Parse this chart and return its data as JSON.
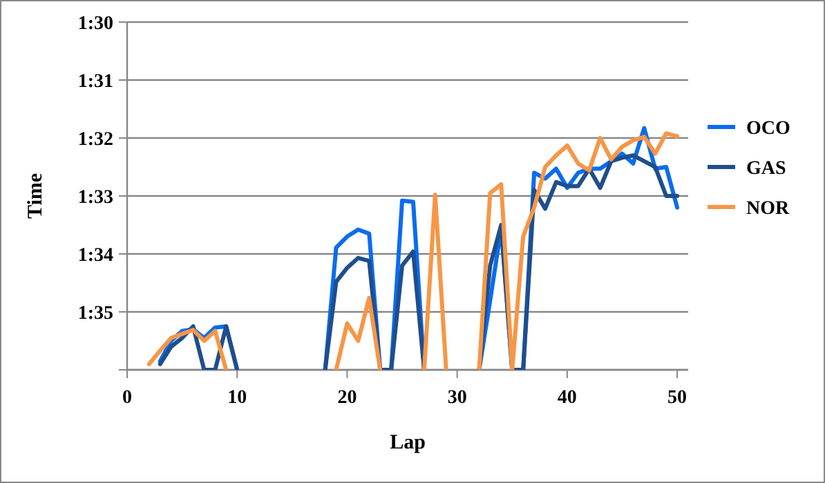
{
  "chart_data": {
    "type": "line",
    "xlabel": "Lap",
    "ylabel": "Time",
    "x": [
      2,
      3,
      4,
      5,
      6,
      7,
      8,
      9,
      10,
      11,
      12,
      13,
      14,
      15,
      16,
      17,
      18,
      19,
      20,
      21,
      22,
      23,
      24,
      25,
      26,
      27,
      28,
      29,
      30,
      31,
      32,
      33,
      34,
      35,
      36,
      37,
      38,
      39,
      40,
      41,
      42,
      43,
      44,
      45,
      46,
      47,
      48,
      49,
      50
    ],
    "xlim": [
      0,
      51
    ],
    "xticks": [
      0,
      10,
      20,
      30,
      40,
      50
    ],
    "ylim": [
      96,
      90
    ],
    "yticks": [
      {
        "value": 90,
        "label": "1:30"
      },
      {
        "value": 91,
        "label": "1:31"
      },
      {
        "value": 92,
        "label": "1:32"
      },
      {
        "value": 93,
        "label": "1:33"
      },
      {
        "value": 94,
        "label": "1:34"
      },
      {
        "value": 95,
        "label": "1:35"
      },
      {
        "value": 96,
        "label": null
      }
    ],
    "grid": "y",
    "legend": "right",
    "marker": "none",
    "line_style": "solid",
    "series": [
      {
        "name": "OCO",
        "color": "#0a6cf0",
        "values": [
          null,
          95.85,
          95.5,
          95.33,
          95.3,
          95.45,
          95.27,
          95.25,
          96,
          null,
          null,
          null,
          null,
          null,
          null,
          null,
          96,
          93.89,
          93.7,
          93.58,
          93.65,
          96,
          96,
          93.08,
          93.1,
          96,
          null,
          null,
          null,
          null,
          96,
          94.8,
          93.55,
          96,
          96,
          92.6,
          92.7,
          92.53,
          92.86,
          92.6,
          92.53,
          92.53,
          92.4,
          92.27,
          92.44,
          91.83,
          92.53,
          92.5,
          93.2
        ]
      },
      {
        "name": "GAS",
        "color": "#1f4e8c",
        "values": [
          null,
          95.9,
          95.6,
          95.45,
          95.25,
          96,
          96,
          95.25,
          96,
          null,
          null,
          null,
          null,
          null,
          null,
          null,
          96,
          94.48,
          94.24,
          94.07,
          94.12,
          96,
          96,
          94.2,
          93.96,
          96,
          null,
          null,
          null,
          null,
          96,
          94.2,
          93.5,
          96,
          96,
          92.9,
          93.22,
          92.76,
          92.83,
          92.83,
          92.53,
          92.86,
          92.4,
          92.34,
          92.3,
          92.4,
          92.5,
          93.0,
          93.0
        ]
      },
      {
        "name": "NOR",
        "color": "#f79646",
        "values": [
          95.9,
          95.67,
          95.45,
          95.38,
          95.31,
          95.5,
          95.33,
          96,
          null,
          null,
          null,
          null,
          null,
          null,
          null,
          null,
          null,
          96,
          95.2,
          95.5,
          94.76,
          96,
          null,
          null,
          null,
          96,
          92.98,
          96,
          null,
          null,
          96,
          92.95,
          92.8,
          96,
          93.7,
          93.2,
          92.5,
          92.3,
          92.13,
          92.44,
          92.56,
          92.0,
          92.37,
          92.15,
          92.04,
          91.98,
          92.27,
          91.92,
          91.97
        ]
      }
    ]
  }
}
